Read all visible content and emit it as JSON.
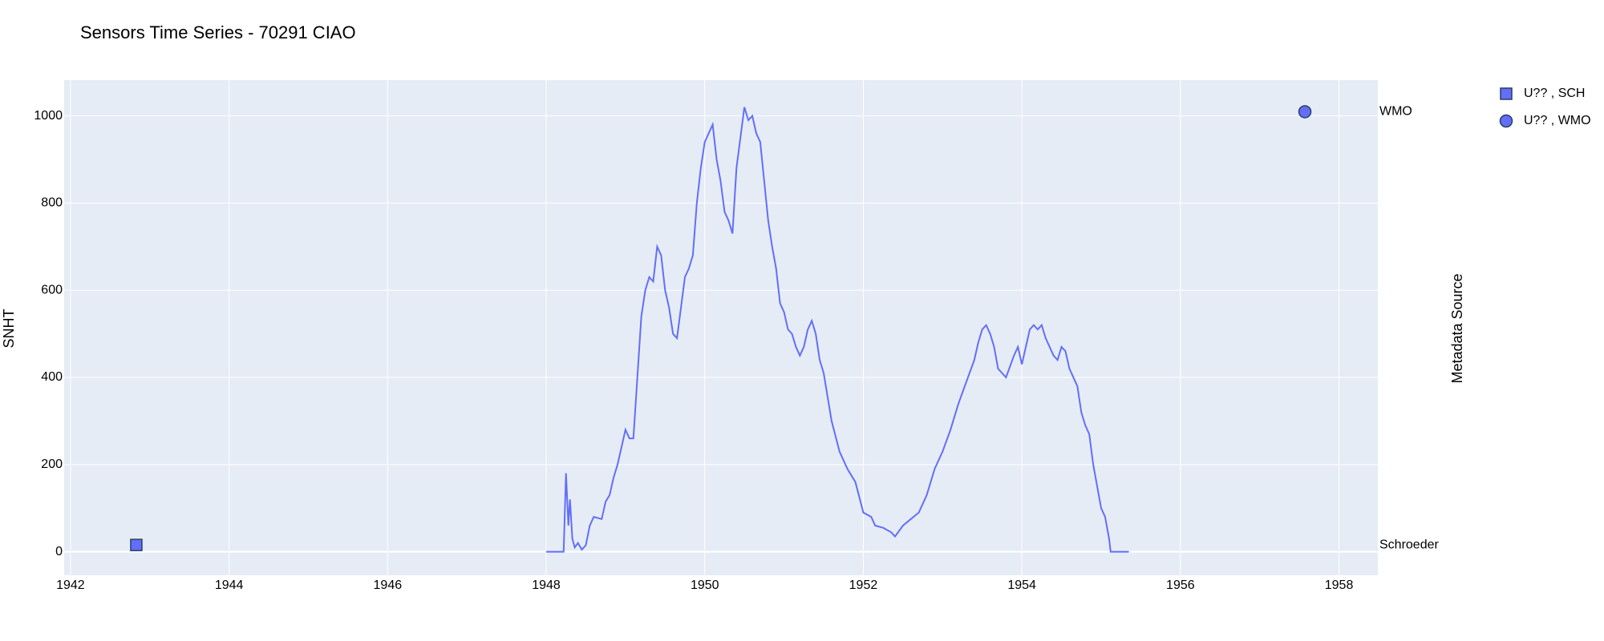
{
  "chart_data": {
    "type": "line",
    "title": "Sensors Time Series - 70291 CIAO",
    "y_label": "SNHT",
    "y2_label": "Metadata Source",
    "xlim": [
      1941.92,
      1958.49
    ],
    "xticks": [
      1942,
      1944,
      1946,
      1948,
      1950,
      1952,
      1954,
      1956,
      1958
    ],
    "ylim": [
      -54,
      1082
    ],
    "yticks": [
      0,
      200,
      400,
      600,
      800,
      1000
    ],
    "y2lim": [
      -0.07,
      1.073
    ],
    "y2ticks": [
      {
        "value": 0,
        "label": "Schroeder"
      },
      {
        "value": 1,
        "label": "WMO"
      }
    ],
    "grid": true,
    "legend": "top-right",
    "series": [
      {
        "mode": "lines",
        "color": "#636efa",
        "x": [
          1948.0,
          1948.22,
          1948.25,
          1948.28,
          1948.3,
          1948.33,
          1948.36,
          1948.4,
          1948.45,
          1948.5,
          1948.55,
          1948.6,
          1948.7,
          1948.75,
          1948.8,
          1948.85,
          1948.9,
          1948.95,
          1949.0,
          1949.05,
          1949.1,
          1949.15,
          1949.2,
          1949.25,
          1949.3,
          1949.35,
          1949.4,
          1949.45,
          1949.5,
          1949.55,
          1949.6,
          1949.65,
          1949.7,
          1949.75,
          1949.8,
          1949.85,
          1949.9,
          1949.95,
          1950.0,
          1950.05,
          1950.1,
          1950.15,
          1950.2,
          1950.25,
          1950.3,
          1950.35,
          1950.4,
          1950.45,
          1950.5,
          1950.55,
          1950.6,
          1950.65,
          1950.7,
          1950.75,
          1950.8,
          1950.85,
          1950.9,
          1950.95,
          1951.0,
          1951.05,
          1951.1,
          1951.15,
          1951.2,
          1951.25,
          1951.3,
          1951.35,
          1951.4,
          1951.45,
          1951.5,
          1951.6,
          1951.7,
          1951.8,
          1951.9,
          1952.0,
          1952.1,
          1952.15,
          1952.25,
          1952.35,
          1952.4,
          1952.5,
          1952.6,
          1952.7,
          1952.8,
          1952.9,
          1953.0,
          1953.1,
          1953.2,
          1953.3,
          1953.4,
          1953.45,
          1953.5,
          1953.55,
          1953.6,
          1953.65,
          1953.7,
          1953.8,
          1953.9,
          1953.95,
          1954.0,
          1954.05,
          1954.1,
          1954.15,
          1954.2,
          1954.25,
          1954.3,
          1954.4,
          1954.45,
          1954.5,
          1954.55,
          1954.6,
          1954.7,
          1954.75,
          1954.8,
          1954.85,
          1954.9,
          1954.95,
          1955.0,
          1955.05,
          1955.1,
          1955.12,
          1955.35
        ],
        "values": [
          0,
          0,
          180,
          60,
          120,
          30,
          10,
          20,
          5,
          15,
          60,
          80,
          75,
          115,
          130,
          170,
          200,
          240,
          280,
          260,
          260,
          400,
          540,
          600,
          630,
          620,
          700,
          680,
          600,
          560,
          500,
          490,
          560,
          630,
          650,
          680,
          800,
          880,
          940,
          960,
          980,
          900,
          850,
          780,
          760,
          730,
          880,
          950,
          1020,
          990,
          1000,
          960,
          940,
          850,
          760,
          700,
          650,
          570,
          550,
          510,
          500,
          470,
          450,
          470,
          510,
          530,
          500,
          440,
          410,
          300,
          230,
          190,
          160,
          90,
          80,
          60,
          55,
          45,
          35,
          60,
          75,
          90,
          130,
          190,
          230,
          280,
          340,
          390,
          440,
          480,
          510,
          520,
          500,
          470,
          420,
          400,
          450,
          470,
          430,
          470,
          510,
          520,
          510,
          520,
          490,
          450,
          440,
          470,
          460,
          420,
          380,
          320,
          290,
          270,
          200,
          150,
          100,
          80,
          30,
          0,
          0
        ]
      },
      {
        "name": "U?? , SCH",
        "mode": "markers",
        "symbol": "square",
        "axis": "y2",
        "color": "#636efa",
        "x": [
          1942.83
        ],
        "values": [
          0
        ]
      },
      {
        "name": "U?? , WMO",
        "mode": "markers",
        "symbol": "circle",
        "axis": "y2",
        "color": "#636efa",
        "x": [
          1957.57
        ],
        "values": [
          1
        ]
      }
    ]
  }
}
